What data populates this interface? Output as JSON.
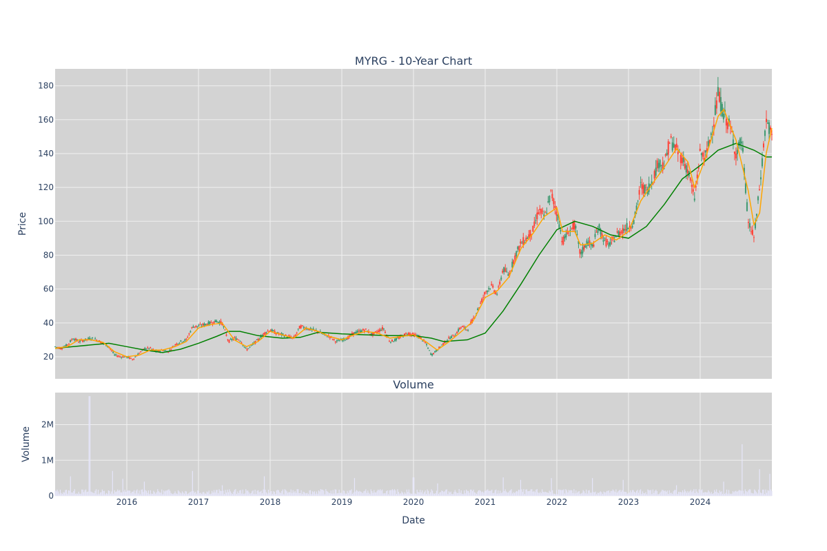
{
  "chart_data": [
    {
      "type": "candlestick",
      "title": "MYRG - 10-Year Chart",
      "ylabel": "Price",
      "xlabel": "",
      "grid": true,
      "legend": "none",
      "xlim": [
        2015.0,
        2025.0
      ],
      "ylim": [
        7,
        190
      ],
      "yticks": [
        20,
        40,
        60,
        80,
        100,
        120,
        140,
        160,
        180
      ],
      "colors": {
        "plot_bg": "#d3d3d3",
        "grid": "#f0f0f0",
        "up": "#3d9970",
        "down": "#ff4136",
        "ma_short": "#ffa500",
        "ma_long": "#008000",
        "text": "#2a3f5f"
      },
      "close_trace": [
        [
          2015.0,
          26
        ],
        [
          2015.08,
          25
        ],
        [
          2015.17,
          27
        ],
        [
          2015.25,
          31
        ],
        [
          2015.33,
          29
        ],
        [
          2015.42,
          30
        ],
        [
          2015.5,
          31
        ],
        [
          2015.58,
          30
        ],
        [
          2015.67,
          28
        ],
        [
          2015.75,
          26
        ],
        [
          2015.83,
          21
        ],
        [
          2015.92,
          20
        ],
        [
          2016.0,
          20
        ],
        [
          2016.08,
          18.5
        ],
        [
          2016.17,
          22
        ],
        [
          2016.25,
          25
        ],
        [
          2016.33,
          25
        ],
        [
          2016.42,
          23
        ],
        [
          2016.5,
          24
        ],
        [
          2016.58,
          23
        ],
        [
          2016.67,
          27
        ],
        [
          2016.75,
          29
        ],
        [
          2016.83,
          30
        ],
        [
          2016.92,
          38
        ],
        [
          2017.0,
          38
        ],
        [
          2017.08,
          39
        ],
        [
          2017.17,
          40
        ],
        [
          2017.25,
          41
        ],
        [
          2017.33,
          40
        ],
        [
          2017.42,
          29
        ],
        [
          2017.5,
          31
        ],
        [
          2017.58,
          30
        ],
        [
          2017.67,
          24
        ],
        [
          2017.75,
          27
        ],
        [
          2017.83,
          30
        ],
        [
          2017.92,
          34
        ],
        [
          2018.0,
          36
        ],
        [
          2018.08,
          34
        ],
        [
          2018.17,
          33
        ],
        [
          2018.25,
          32
        ],
        [
          2018.33,
          31
        ],
        [
          2018.42,
          38
        ],
        [
          2018.5,
          37
        ],
        [
          2018.58,
          36
        ],
        [
          2018.67,
          35
        ],
        [
          2018.75,
          33
        ],
        [
          2018.83,
          32
        ],
        [
          2018.92,
          29
        ],
        [
          2019.0,
          30
        ],
        [
          2019.08,
          31
        ],
        [
          2019.17,
          34
        ],
        [
          2019.25,
          35
        ],
        [
          2019.33,
          36
        ],
        [
          2019.42,
          33
        ],
        [
          2019.5,
          35
        ],
        [
          2019.58,
          37
        ],
        [
          2019.67,
          29
        ],
        [
          2019.75,
          30
        ],
        [
          2019.83,
          32
        ],
        [
          2019.92,
          34
        ],
        [
          2020.0,
          33
        ],
        [
          2020.08,
          32
        ],
        [
          2020.17,
          28
        ],
        [
          2020.25,
          21
        ],
        [
          2020.33,
          24
        ],
        [
          2020.42,
          28
        ],
        [
          2020.5,
          31
        ],
        [
          2020.58,
          33
        ],
        [
          2020.67,
          38
        ],
        [
          2020.75,
          36
        ],
        [
          2020.83,
          42
        ],
        [
          2020.92,
          50
        ],
        [
          2021.0,
          58
        ],
        [
          2021.08,
          62
        ],
        [
          2021.17,
          57
        ],
        [
          2021.25,
          72
        ],
        [
          2021.33,
          68
        ],
        [
          2021.42,
          80
        ],
        [
          2021.5,
          87
        ],
        [
          2021.58,
          90
        ],
        [
          2021.67,
          95
        ],
        [
          2021.75,
          107
        ],
        [
          2021.83,
          102
        ],
        [
          2021.92,
          117
        ],
        [
          2022.0,
          105
        ],
        [
          2022.08,
          88
        ],
        [
          2022.17,
          94
        ],
        [
          2022.25,
          98
        ],
        [
          2022.33,
          80
        ],
        [
          2022.42,
          88
        ],
        [
          2022.5,
          85
        ],
        [
          2022.58,
          97
        ],
        [
          2022.67,
          88
        ],
        [
          2022.75,
          86
        ],
        [
          2022.83,
          92
        ],
        [
          2022.92,
          95
        ],
        [
          2023.0,
          97
        ],
        [
          2023.08,
          100
        ],
        [
          2023.17,
          121
        ],
        [
          2023.25,
          118
        ],
        [
          2023.33,
          124
        ],
        [
          2023.42,
          135
        ],
        [
          2023.5,
          133
        ],
        [
          2023.58,
          148
        ],
        [
          2023.67,
          142
        ],
        [
          2023.75,
          137
        ],
        [
          2023.83,
          130
        ],
        [
          2023.92,
          113
        ],
        [
          2024.0,
          140
        ],
        [
          2024.08,
          138
        ],
        [
          2024.17,
          155
        ],
        [
          2024.25,
          175
        ],
        [
          2024.33,
          163
        ],
        [
          2024.42,
          155
        ],
        [
          2024.5,
          140
        ],
        [
          2024.58,
          148
        ],
        [
          2024.67,
          100
        ],
        [
          2024.75,
          90
        ],
        [
          2024.83,
          120
        ],
        [
          2024.92,
          160
        ],
        [
          2025.0,
          150
        ]
      ],
      "ma_short": [
        [
          2015.0,
          25
        ],
        [
          2015.17,
          26
        ],
        [
          2015.33,
          30
        ],
        [
          2015.5,
          30
        ],
        [
          2015.67,
          28.5
        ],
        [
          2015.83,
          23
        ],
        [
          2016.0,
          20
        ],
        [
          2016.17,
          21
        ],
        [
          2016.33,
          24
        ],
        [
          2016.5,
          24
        ],
        [
          2016.67,
          26
        ],
        [
          2016.83,
          29
        ],
        [
          2017.0,
          37
        ],
        [
          2017.17,
          39
        ],
        [
          2017.33,
          40
        ],
        [
          2017.5,
          30
        ],
        [
          2017.67,
          26
        ],
        [
          2017.83,
          29
        ],
        [
          2018.0,
          35
        ],
        [
          2018.17,
          33
        ],
        [
          2018.33,
          31
        ],
        [
          2018.5,
          37
        ],
        [
          2018.67,
          35
        ],
        [
          2018.83,
          32
        ],
        [
          2019.0,
          30
        ],
        [
          2019.17,
          33
        ],
        [
          2019.33,
          35
        ],
        [
          2019.5,
          34
        ],
        [
          2019.67,
          31
        ],
        [
          2019.83,
          32
        ],
        [
          2020.0,
          33
        ],
        [
          2020.17,
          29
        ],
        [
          2020.33,
          24
        ],
        [
          2020.5,
          29
        ],
        [
          2020.67,
          35
        ],
        [
          2020.83,
          41
        ],
        [
          2021.0,
          55
        ],
        [
          2021.17,
          59
        ],
        [
          2021.33,
          67
        ],
        [
          2021.5,
          84
        ],
        [
          2021.67,
          93
        ],
        [
          2021.83,
          103
        ],
        [
          2022.0,
          108
        ],
        [
          2022.08,
          94
        ],
        [
          2022.25,
          94
        ],
        [
          2022.33,
          86
        ],
        [
          2022.5,
          87
        ],
        [
          2022.67,
          92
        ],
        [
          2022.83,
          89
        ],
        [
          2023.0,
          94
        ],
        [
          2023.17,
          112
        ],
        [
          2023.33,
          122
        ],
        [
          2023.5,
          132
        ],
        [
          2023.67,
          143
        ],
        [
          2023.83,
          135
        ],
        [
          2023.92,
          120
        ],
        [
          2024.08,
          138
        ],
        [
          2024.25,
          162
        ],
        [
          2024.33,
          166
        ],
        [
          2024.5,
          148
        ],
        [
          2024.67,
          118
        ],
        [
          2024.75,
          98
        ],
        [
          2024.83,
          105
        ],
        [
          2024.92,
          140
        ],
        [
          2025.0,
          155
        ]
      ],
      "ma_long": [
        [
          2015.0,
          25
        ],
        [
          2015.25,
          26
        ],
        [
          2015.5,
          27
        ],
        [
          2015.75,
          28
        ],
        [
          2016.0,
          26
        ],
        [
          2016.25,
          24
        ],
        [
          2016.5,
          22.5
        ],
        [
          2016.75,
          24.5
        ],
        [
          2017.0,
          28
        ],
        [
          2017.25,
          32
        ],
        [
          2017.42,
          35
        ],
        [
          2017.58,
          35
        ],
        [
          2017.83,
          32.5
        ],
        [
          2018.17,
          31
        ],
        [
          2018.42,
          31.5
        ],
        [
          2018.67,
          34.5
        ],
        [
          2019.0,
          33.5
        ],
        [
          2019.33,
          33
        ],
        [
          2019.67,
          32.5
        ],
        [
          2020.0,
          32.5
        ],
        [
          2020.25,
          31
        ],
        [
          2020.42,
          29
        ],
        [
          2020.75,
          30
        ],
        [
          2021.0,
          34
        ],
        [
          2021.25,
          47
        ],
        [
          2021.5,
          63
        ],
        [
          2021.75,
          80
        ],
        [
          2022.0,
          95
        ],
        [
          2022.25,
          100
        ],
        [
          2022.5,
          97
        ],
        [
          2022.75,
          92
        ],
        [
          2023.0,
          90
        ],
        [
          2023.25,
          97
        ],
        [
          2023.5,
          110
        ],
        [
          2023.75,
          125
        ],
        [
          2024.0,
          133
        ],
        [
          2024.25,
          142
        ],
        [
          2024.5,
          146
        ],
        [
          2024.75,
          142
        ],
        [
          2024.92,
          138
        ],
        [
          2025.0,
          138
        ]
      ]
    },
    {
      "type": "bar",
      "title": "Volume",
      "ylabel": "Volume",
      "xlabel": "Date",
      "grid": true,
      "xlim": [
        2015.0,
        2025.0
      ],
      "ylim": [
        0,
        2900000
      ],
      "yticks": [
        0,
        1000000,
        2000000
      ],
      "ytick_labels": [
        "0",
        "1M",
        "2M"
      ],
      "xticks": [
        2016,
        2017,
        2018,
        2019,
        2020,
        2021,
        2022,
        2023,
        2024
      ],
      "xtick_labels": [
        "2016",
        "2017",
        "2018",
        "2019",
        "2020",
        "2021",
        "2022",
        "2023",
        "2024"
      ],
      "colors": {
        "bar": "#e6e6fa"
      },
      "baseline_volume": 120000,
      "spikes": [
        [
          2015.22,
          550000
        ],
        [
          2015.48,
          2800000
        ],
        [
          2015.8,
          700000
        ],
        [
          2015.95,
          480000
        ],
        [
          2016.25,
          400000
        ],
        [
          2016.92,
          700000
        ],
        [
          2017.33,
          300000
        ],
        [
          2017.92,
          550000
        ],
        [
          2019.18,
          500000
        ],
        [
          2020.0,
          520000
        ],
        [
          2020.33,
          350000
        ],
        [
          2021.25,
          520000
        ],
        [
          2021.5,
          450000
        ],
        [
          2021.92,
          500000
        ],
        [
          2022.5,
          500000
        ],
        [
          2022.92,
          450000
        ],
        [
          2023.67,
          300000
        ],
        [
          2024.33,
          400000
        ],
        [
          2024.58,
          1450000
        ],
        [
          2024.83,
          750000
        ],
        [
          2024.97,
          620000
        ]
      ]
    }
  ]
}
